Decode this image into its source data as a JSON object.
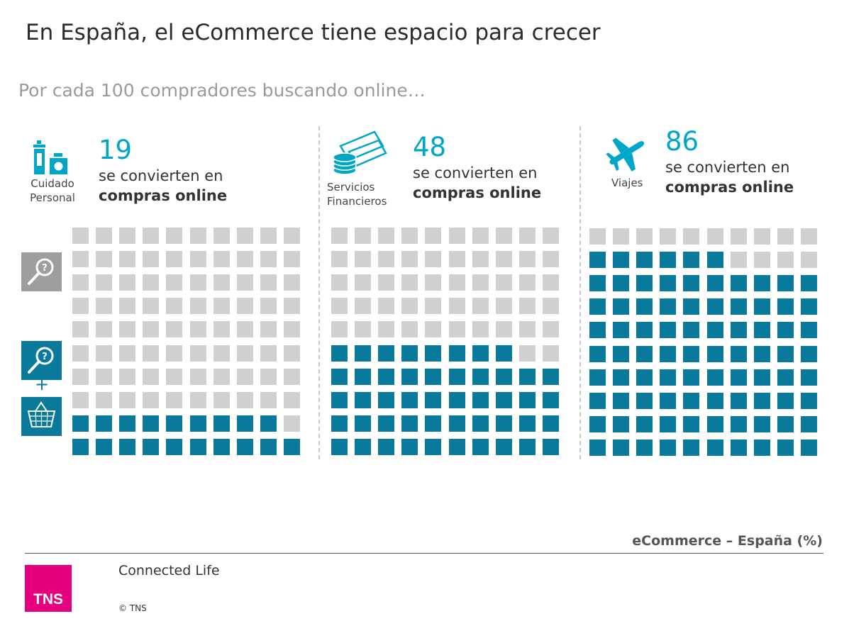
{
  "title": "En España, el eCommerce tiene espacio para crecer",
  "subtitle": "Por cada 100 compradores buscando online…",
  "conversion_text": "se convierten en",
  "conversion_bold": "compras online",
  "colors": {
    "accent": "#00a6c7",
    "filled": "#0a7a9c",
    "empty": "#d0d0d0",
    "brand": "#e6007e",
    "search_icon_bg": "#9e9e9e"
  },
  "legend_icons": {
    "search_only": "search-magnifier-icon",
    "search_and_buy": "search-plus-basket-icon"
  },
  "chart_data": [
    {
      "type": "waffle",
      "category_line1": "Cuidado",
      "category_line2": "Personal",
      "icon": "personal-care-icon",
      "value": 19,
      "total": 100,
      "rows": 10,
      "cols": 10
    },
    {
      "type": "waffle",
      "category_line1": "Servicios",
      "category_line2": "Financieros",
      "icon": "financial-services-icon",
      "value": 48,
      "total": 100,
      "rows": 10,
      "cols": 10
    },
    {
      "type": "waffle",
      "category_line1": "Viajes",
      "category_line2": "",
      "icon": "airplane-icon",
      "value": 86,
      "total": 100,
      "rows": 10,
      "cols": 10
    }
  ],
  "footer": {
    "axis_note": "eCommerce – España (%)",
    "brand": "Connected Life",
    "copyright": "© TNS",
    "logo_text": "TNS"
  }
}
